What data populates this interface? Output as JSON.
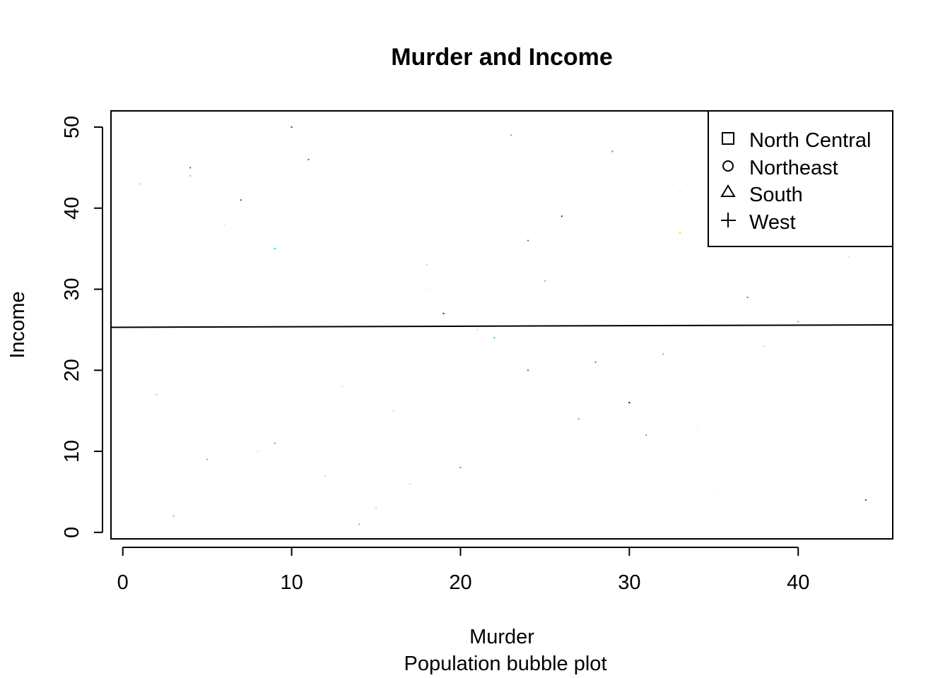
{
  "chart_data": {
    "type": "scatter",
    "title": "Murder and Income",
    "xlabel": "Murder",
    "ylabel": "Income",
    "subtitle": "Population bubble plot",
    "xlim": [
      -0.7,
      45.6
    ],
    "ylim": [
      -0.8,
      52
    ],
    "xticks": [
      0,
      10,
      20,
      30,
      40
    ],
    "yticks": [
      0,
      10,
      20,
      30,
      40,
      50
    ],
    "grid": false,
    "legend": {
      "placement": "top-right",
      "entries": [
        {
          "label": "North Central",
          "symbol": "square"
        },
        {
          "label": "Northeast",
          "symbol": "circle"
        },
        {
          "label": "South",
          "symbol": "triangle"
        },
        {
          "label": "West",
          "symbol": "plus"
        }
      ]
    },
    "regression_line": {
      "x": [
        -0.7,
        45.6
      ],
      "y": [
        25.3,
        25.6
      ]
    },
    "points": [
      {
        "x": 1,
        "y": 43,
        "color": "#90ee90"
      },
      {
        "x": 2,
        "y": 17,
        "color": "#87ceeb"
      },
      {
        "x": 3,
        "y": 2,
        "color": "#daa520"
      },
      {
        "x": 4,
        "y": 45,
        "color": "#556b2f"
      },
      {
        "x": 4,
        "y": 44,
        "color": "#bdb76b"
      },
      {
        "x": 5,
        "y": 9,
        "color": "#daa520"
      },
      {
        "x": 6,
        "y": 38,
        "color": "#f0e68c"
      },
      {
        "x": 7,
        "y": 41,
        "color": "#2f4f4f"
      },
      {
        "x": 8,
        "y": 10,
        "color": "#f0e68c"
      },
      {
        "x": 9,
        "y": 35,
        "color": "#00bfff"
      },
      {
        "x": 9,
        "y": 11,
        "color": "#32cd32"
      },
      {
        "x": 10,
        "y": 50,
        "color": "#2f4f4f"
      },
      {
        "x": 11,
        "y": 46,
        "color": "#556b2f"
      },
      {
        "x": 12,
        "y": 7,
        "color": "#d3d3d3"
      },
      {
        "x": 13,
        "y": 18,
        "color": "#dddddd"
      },
      {
        "x": 14,
        "y": 1,
        "color": "#daa520"
      },
      {
        "x": 15,
        "y": 3,
        "color": "#d3d3d3"
      },
      {
        "x": 16,
        "y": 15,
        "color": "#dddddd"
      },
      {
        "x": 17,
        "y": 6,
        "color": "#d3d3d3"
      },
      {
        "x": 18,
        "y": 33,
        "color": "#d3d3d3"
      },
      {
        "x": 18,
        "y": 30,
        "color": "#eeeeee"
      },
      {
        "x": 19,
        "y": 27,
        "color": "#8b0000"
      },
      {
        "x": 20,
        "y": 8,
        "color": "#808080"
      },
      {
        "x": 21,
        "y": 25,
        "color": "#dddddd"
      },
      {
        "x": 22,
        "y": 24,
        "color": "#00ced1"
      },
      {
        "x": 23,
        "y": 49,
        "color": "#ff69b4"
      },
      {
        "x": 24,
        "y": 36,
        "color": "#696969"
      },
      {
        "x": 24,
        "y": 20,
        "color": "#696969"
      },
      {
        "x": 25,
        "y": 31,
        "color": "#a9a9a9"
      },
      {
        "x": 26,
        "y": 39,
        "color": "#8b008b"
      },
      {
        "x": 27,
        "y": 32,
        "color": "#e0ffff"
      },
      {
        "x": 27,
        "y": 14,
        "color": "#6495ed"
      },
      {
        "x": 28,
        "y": 21,
        "color": "#696969"
      },
      {
        "x": 29,
        "y": 47,
        "color": "#cd5c5c"
      },
      {
        "x": 30,
        "y": 16,
        "color": "#000080"
      },
      {
        "x": 31,
        "y": 12,
        "color": "#ff6347"
      },
      {
        "x": 32,
        "y": 22,
        "color": "#a9a9a9"
      },
      {
        "x": 33,
        "y": 42,
        "color": "#d3d3d3"
      },
      {
        "x": 33,
        "y": 37,
        "color": "#ffd700"
      },
      {
        "x": 34,
        "y": 13,
        "color": "#eeeeee"
      },
      {
        "x": 35,
        "y": 5,
        "color": "#eeeeee"
      },
      {
        "x": 37,
        "y": 29,
        "color": "#696969"
      },
      {
        "x": 38,
        "y": 23,
        "color": "#d3d3d3"
      },
      {
        "x": 39,
        "y": 28,
        "color": "#e0ffff"
      },
      {
        "x": 40,
        "y": 26,
        "color": "#a9a9a9"
      },
      {
        "x": 42,
        "y": 19,
        "color": "#eeeeee"
      },
      {
        "x": 43,
        "y": 34,
        "color": "#f5deb3"
      },
      {
        "x": 44,
        "y": 4,
        "color": "#2f4f4f"
      }
    ]
  }
}
